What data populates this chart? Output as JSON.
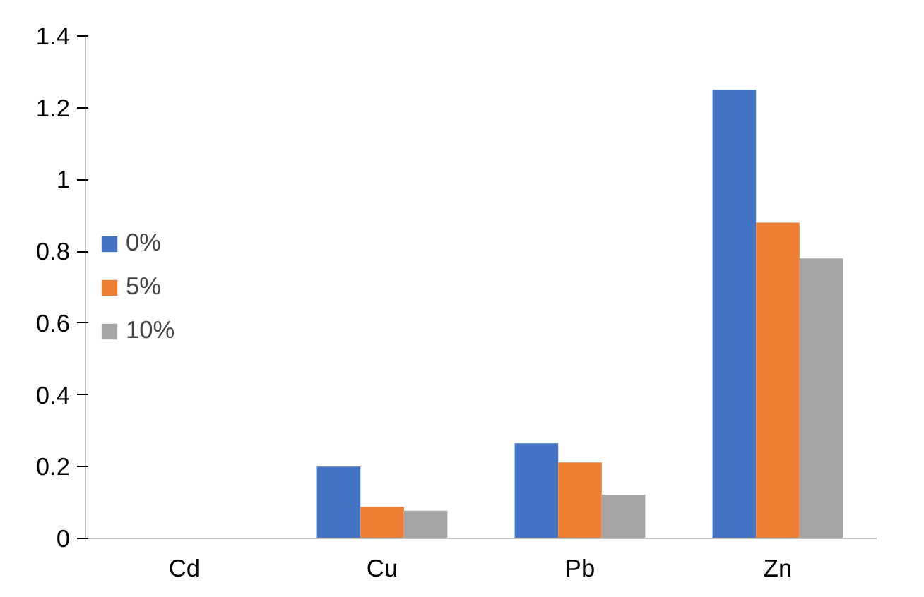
{
  "chart_data": {
    "type": "bar",
    "categories": [
      "Cd",
      "Cu",
      "Pb",
      "Zn"
    ],
    "series": [
      {
        "name": "0%",
        "color": "#4472c4",
        "values": [
          0,
          0.2,
          0.265,
          1.25
        ]
      },
      {
        "name": "5%",
        "color": "#ed7d31",
        "values": [
          0,
          0.088,
          0.212,
          0.88
        ]
      },
      {
        "name": "10%",
        "color": "#a5a5a5",
        "values": [
          0,
          0.077,
          0.122,
          0.78
        ]
      }
    ],
    "ylim": [
      0,
      1.4
    ],
    "yticks": [
      0,
      0.2,
      0.4,
      0.6,
      0.8,
      1,
      1.2,
      1.4
    ],
    "grid": false,
    "legend": "left"
  }
}
